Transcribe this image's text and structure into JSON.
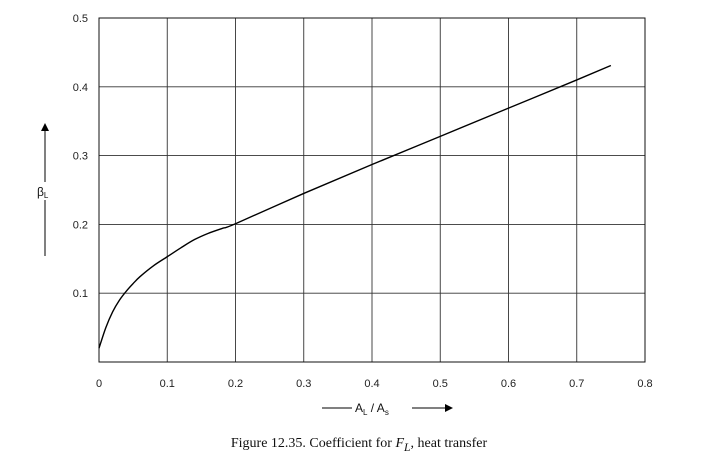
{
  "chart_data": {
    "type": "line",
    "x_ticks": [
      "0",
      "0.1",
      "0.2",
      "0.3",
      "0.4",
      "0.5",
      "0.6",
      "0.7",
      "0.8"
    ],
    "y_ticks": [
      "0.1",
      "0.2",
      "0.3",
      "0.4",
      "0.5"
    ],
    "xlim": [
      0,
      0.8
    ],
    "ylim": [
      0,
      0.5
    ],
    "xlabel": {
      "main": "A",
      "sub1": "L",
      "sep": " / A",
      "sub2": "s"
    },
    "ylabel": {
      "main": "β",
      "sub": "L"
    },
    "grid": true,
    "series": [
      {
        "x": [
          0,
          0.01,
          0.02,
          0.03,
          0.04,
          0.05,
          0.06,
          0.08,
          0.1,
          0.12,
          0.14,
          0.16,
          0.18,
          0.2,
          0.3,
          0.4,
          0.5,
          0.6,
          0.7,
          0.75
        ],
        "y": [
          0.02,
          0.05,
          0.073,
          0.09,
          0.103,
          0.114,
          0.124,
          0.14,
          0.153,
          0.166,
          0.178,
          0.187,
          0.194,
          0.201,
          0.245,
          0.287,
          0.328,
          0.369,
          0.41,
          0.431
        ]
      }
    ]
  },
  "caption": {
    "prefix": "Figure 12.35.   Coefficient for ",
    "symbol": "F",
    "symbol_sub": "L",
    "suffix": ", heat transfer"
  }
}
